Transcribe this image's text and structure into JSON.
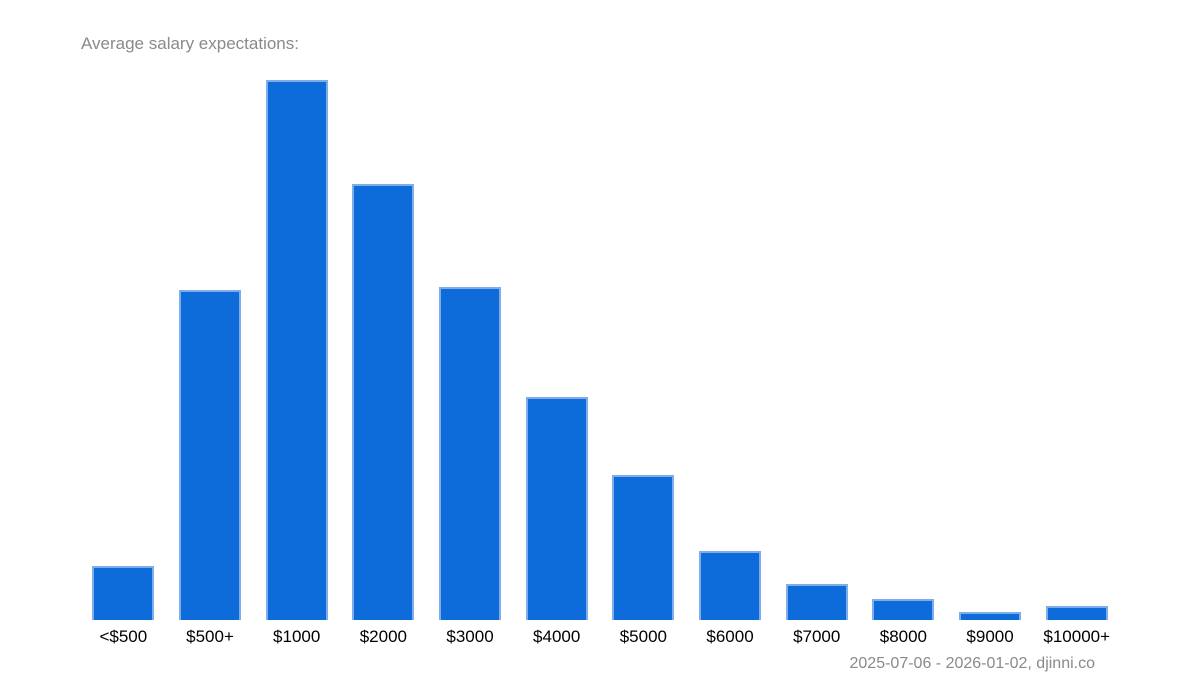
{
  "chart_data": {
    "type": "bar",
    "title": "Average salary expectations:",
    "categories": [
      "<$500",
      "$500+",
      "$1000",
      "$2000",
      "$3000",
      "$4000",
      "$5000",
      "$6000",
      "$7000",
      "$8000",
      "$9000",
      "$10000+"
    ],
    "values": [
      10.0,
      61.1,
      100,
      80.7,
      61.7,
      41.3,
      26.9,
      12.8,
      6.7,
      3.9,
      1.5,
      2.6
    ],
    "xlabel": "",
    "ylabel": "",
    "ylim": [
      0,
      100
    ],
    "grid": false,
    "legend": false,
    "bar_color": "#0d6cd9",
    "bar_border_color": "#7eade9"
  },
  "footer": {
    "caption": "2025-07-06 - 2026-01-02, djinni.co"
  },
  "colors": {
    "background": "#ffffff",
    "title_text": "#8a8a8a",
    "tick_text": "#000000",
    "caption_text": "#8a8a8a"
  }
}
